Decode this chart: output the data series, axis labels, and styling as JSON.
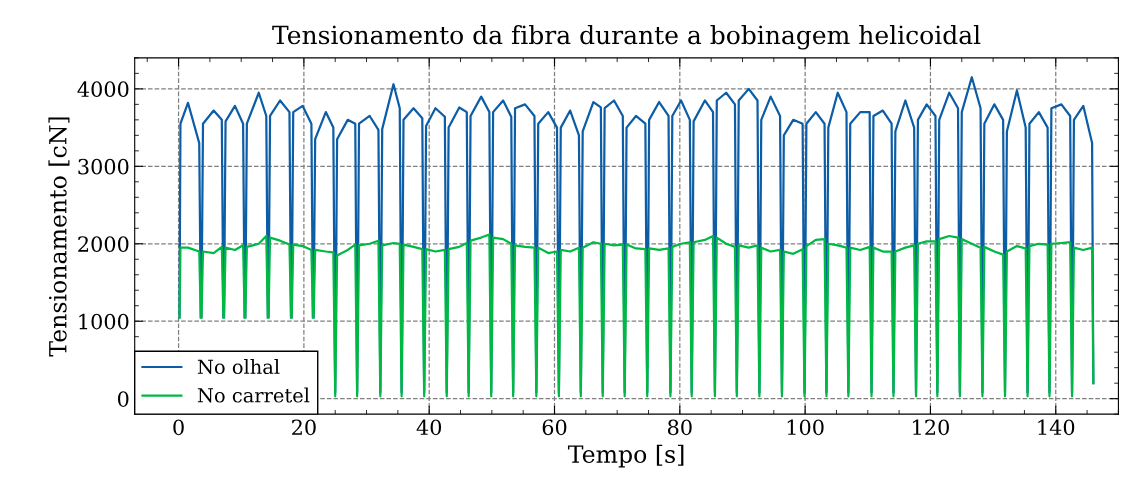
{
  "chart_data": {
    "type": "line",
    "title": "Tensionamento da fibra durante a bobinagem helicoidal",
    "xlabel": "Tempo [s]",
    "ylabel": "Tensionamento [cN]",
    "xlim": [
      -7,
      150
    ],
    "xticks": [
      0,
      20,
      40,
      60,
      80,
      100,
      120,
      140
    ],
    "ylim": [
      -200,
      4400
    ],
    "yticks": [
      0,
      1000,
      2000,
      3000,
      4000
    ],
    "grid": true,
    "legend": "bottom left",
    "x": [
      0.15,
      0.3,
      1.5,
      3.3,
      3.55,
      3.6,
      3.65,
      3.9,
      5.6,
      6.9,
      7.15,
      7.2,
      7.25,
      7.5,
      9.0,
      10.3,
      10.55,
      10.6,
      10.65,
      10.9,
      12.8,
      14.0,
      14.25,
      14.3,
      14.35,
      14.6,
      16.2,
      17.7,
      17.95,
      18.0,
      18.05,
      18.3,
      19.8,
      21.2,
      21.45,
      21.5,
      21.55,
      21.8,
      23.5,
      24.7,
      25.0,
      25.3,
      27.0,
      28.2,
      28.5,
      28.8,
      30.5,
      31.9,
      32.2,
      32.5,
      34.3,
      35.3,
      35.6,
      35.9,
      37.5,
      38.9,
      39.2,
      39.5,
      41.0,
      42.5,
      42.8,
      43.1,
      44.8,
      46.0,
      46.3,
      46.6,
      48.3,
      49.6,
      49.9,
      50.2,
      51.8,
      53.1,
      53.4,
      53.7,
      55.3,
      56.8,
      57.1,
      57.4,
      59.0,
      60.4,
      60.7,
      61.0,
      62.5,
      63.9,
      64.2,
      64.5,
      66.2,
      67.4,
      67.7,
      68.0,
      69.5,
      70.9,
      71.2,
      71.5,
      73.0,
      74.5,
      74.8,
      75.1,
      76.7,
      78.2,
      78.5,
      78.8,
      80.2,
      81.6,
      81.9,
      82.2,
      84.0,
      85.3,
      85.6,
      85.9,
      87.4,
      88.8,
      89.1,
      89.4,
      91.0,
      92.4,
      92.7,
      93.0,
      94.5,
      96.0,
      96.3,
      96.6,
      98.1,
      99.6,
      99.9,
      100.2,
      101.7,
      103.1,
      103.4,
      103.7,
      105.2,
      106.6,
      106.9,
      107.2,
      108.8,
      110.3,
      110.6,
      110.9,
      112.4,
      113.8,
      114.1,
      114.4,
      116.0,
      117.4,
      117.7,
      118.0,
      119.4,
      120.8,
      121.1,
      121.4,
      123.0,
      124.4,
      124.7,
      125.0,
      126.6,
      128.0,
      128.3,
      128.6,
      130.2,
      131.6,
      131.9,
      132.2,
      133.8,
      135.2,
      135.5,
      135.8,
      137.3,
      138.7,
      139.0,
      139.3,
      140.9,
      142.3,
      142.6,
      142.9,
      144.4,
      145.8,
      146.0
    ],
    "series": [
      {
        "name": "No olhal",
        "color": "#0c5da5",
        "values": [
          1050,
          3550,
          3820,
          3300,
          1050,
          null,
          1050,
          3550,
          3720,
          3600,
          1050,
          null,
          1050,
          3580,
          3780,
          3550,
          1050,
          null,
          1050,
          3550,
          3950,
          3650,
          1050,
          null,
          1050,
          3650,
          3850,
          3700,
          1050,
          null,
          1050,
          3700,
          3780,
          3550,
          1050,
          null,
          1050,
          3350,
          3700,
          3500,
          80,
          3350,
          3600,
          3550,
          80,
          3550,
          3650,
          3470,
          80,
          3480,
          4060,
          3750,
          80,
          3600,
          3750,
          3620,
          80,
          3520,
          3750,
          3640,
          80,
          3500,
          3760,
          3700,
          80,
          3650,
          3900,
          3700,
          80,
          3700,
          3850,
          3640,
          80,
          3750,
          3800,
          3650,
          80,
          3550,
          3700,
          3500,
          80,
          3500,
          3720,
          3400,
          80,
          3450,
          3830,
          3760,
          80,
          3750,
          3850,
          3650,
          80,
          3500,
          3650,
          3550,
          80,
          3600,
          3830,
          3650,
          80,
          3650,
          3850,
          3600,
          80,
          3580,
          3850,
          3700,
          80,
          3850,
          3950,
          3800,
          80,
          3850,
          4000,
          3850,
          80,
          3600,
          3900,
          3650,
          80,
          3400,
          3600,
          3550,
          80,
          3550,
          3700,
          3550,
          80,
          3500,
          3950,
          3700,
          80,
          3550,
          3700,
          3700,
          80,
          3650,
          3720,
          3550,
          80,
          3450,
          3850,
          3500,
          80,
          3600,
          3800,
          3650,
          80,
          3600,
          3950,
          3750,
          80,
          3700,
          4150,
          3750,
          80,
          3550,
          3800,
          3600,
          80,
          3450,
          3980,
          3500,
          80,
          3550,
          3700,
          3500,
          80,
          3750,
          3800,
          3650,
          80,
          3600,
          3780,
          3300,
          200
        ]
      },
      {
        "name": "No carretel",
        "color": "#00b945",
        "values": [
          1050,
          1950,
          1950,
          1900,
          1050,
          null,
          1050,
          1900,
          1880,
          1960,
          1050,
          null,
          1050,
          1950,
          1920,
          1980,
          1050,
          null,
          1050,
          1960,
          2000,
          2100,
          1050,
          null,
          1050,
          2080,
          2040,
          1990,
          1050,
          null,
          1050,
          1990,
          1970,
          1920,
          1050,
          null,
          1050,
          1920,
          1900,
          1890,
          30,
          1850,
          1920,
          1990,
          30,
          1980,
          2000,
          2040,
          30,
          1980,
          2010,
          2000,
          30,
          1990,
          1960,
          1930,
          30,
          1930,
          1900,
          1920,
          30,
          1930,
          1960,
          2010,
          30,
          2040,
          2080,
          2120,
          30,
          2080,
          2060,
          2000,
          30,
          1980,
          1960,
          1950,
          30,
          1950,
          1880,
          1900,
          30,
          1920,
          1900,
          1950,
          30,
          1950,
          2020,
          2000,
          30,
          2000,
          1980,
          1990,
          30,
          1990,
          1940,
          1930,
          30,
          1940,
          1920,
          1940,
          30,
          1960,
          2000,
          2020,
          30,
          2020,
          2050,
          2100,
          30,
          2080,
          2000,
          1960,
          30,
          1980,
          1950,
          1980,
          30,
          1950,
          1900,
          1920,
          30,
          1900,
          1870,
          1930,
          30,
          1970,
          2050,
          2060,
          30,
          2000,
          1980,
          1950,
          30,
          1950,
          1920,
          1960,
          30,
          1950,
          1900,
          1900,
          30,
          1900,
          1950,
          1980,
          30,
          2000,
          2030,
          2030,
          30,
          2060,
          2100,
          2080,
          30,
          2060,
          2000,
          1950,
          30,
          1960,
          1900,
          1860,
          30,
          1900,
          1970,
          1940,
          30,
          1970,
          2000,
          1990,
          30,
          2000,
          2010,
          2020,
          30,
          1950,
          1920,
          1950,
          200
        ]
      }
    ]
  }
}
